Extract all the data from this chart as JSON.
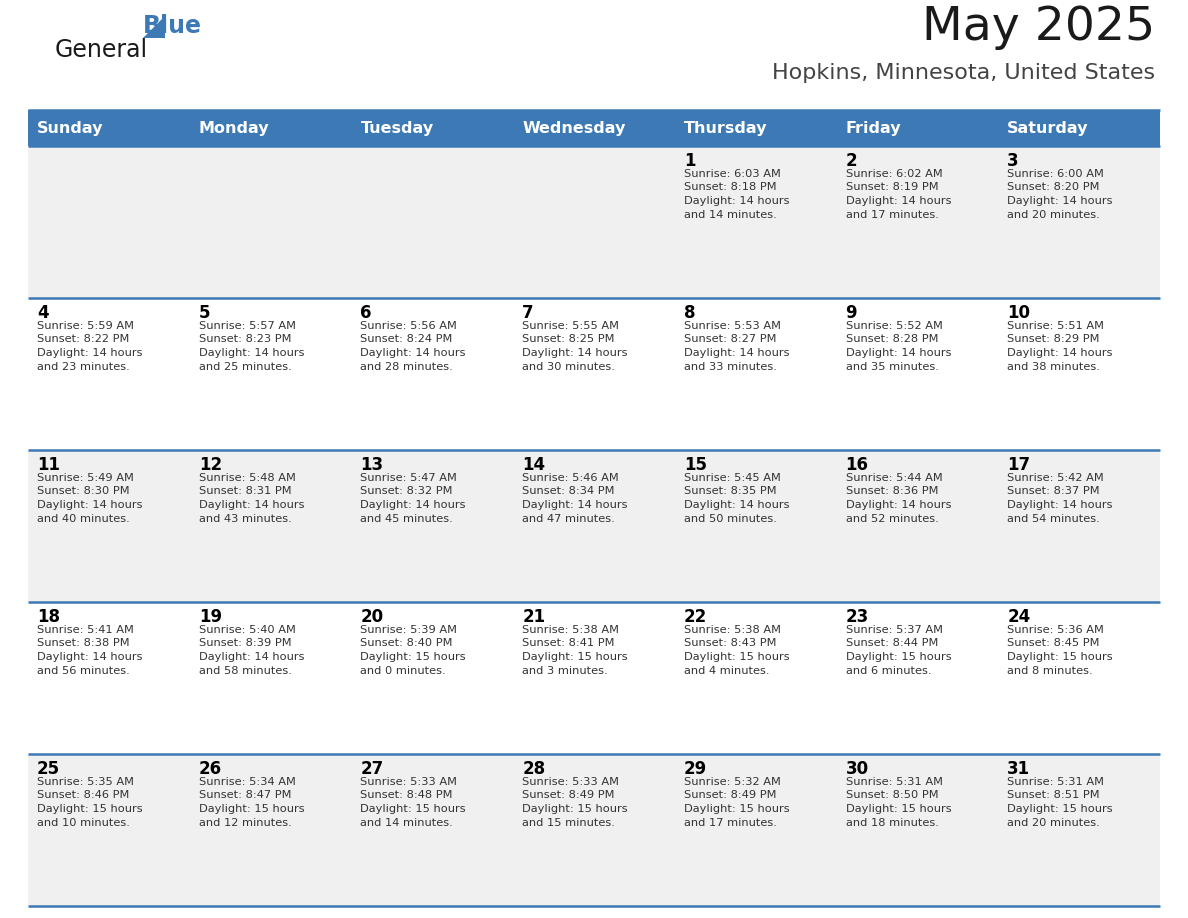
{
  "title": "May 2025",
  "subtitle": "Hopkins, Minnesota, United States",
  "days_of_week": [
    "Sunday",
    "Monday",
    "Tuesday",
    "Wednesday",
    "Thursday",
    "Friday",
    "Saturday"
  ],
  "header_bg": "#3d7ab5",
  "header_text": "#ffffff",
  "row_bg_odd": "#f0f0f0",
  "row_bg_even": "#ffffff",
  "separator_color": "#3d7ab5",
  "day_number_color": "#000000",
  "cell_text_color": "#333333",
  "title_color": "#1a1a1a",
  "subtitle_color": "#444444",
  "calendar": [
    [
      null,
      null,
      null,
      null,
      {
        "day": 1,
        "sunrise": "6:03 AM",
        "sunset": "8:18 PM",
        "daylight": "14 hours",
        "daylight2": "and 14 minutes."
      },
      {
        "day": 2,
        "sunrise": "6:02 AM",
        "sunset": "8:19 PM",
        "daylight": "14 hours",
        "daylight2": "and 17 minutes."
      },
      {
        "day": 3,
        "sunrise": "6:00 AM",
        "sunset": "8:20 PM",
        "daylight": "14 hours",
        "daylight2": "and 20 minutes."
      }
    ],
    [
      {
        "day": 4,
        "sunrise": "5:59 AM",
        "sunset": "8:22 PM",
        "daylight": "14 hours",
        "daylight2": "and 23 minutes."
      },
      {
        "day": 5,
        "sunrise": "5:57 AM",
        "sunset": "8:23 PM",
        "daylight": "14 hours",
        "daylight2": "and 25 minutes."
      },
      {
        "day": 6,
        "sunrise": "5:56 AM",
        "sunset": "8:24 PM",
        "daylight": "14 hours",
        "daylight2": "and 28 minutes."
      },
      {
        "day": 7,
        "sunrise": "5:55 AM",
        "sunset": "8:25 PM",
        "daylight": "14 hours",
        "daylight2": "and 30 minutes."
      },
      {
        "day": 8,
        "sunrise": "5:53 AM",
        "sunset": "8:27 PM",
        "daylight": "14 hours",
        "daylight2": "and 33 minutes."
      },
      {
        "day": 9,
        "sunrise": "5:52 AM",
        "sunset": "8:28 PM",
        "daylight": "14 hours",
        "daylight2": "and 35 minutes."
      },
      {
        "day": 10,
        "sunrise": "5:51 AM",
        "sunset": "8:29 PM",
        "daylight": "14 hours",
        "daylight2": "and 38 minutes."
      }
    ],
    [
      {
        "day": 11,
        "sunrise": "5:49 AM",
        "sunset": "8:30 PM",
        "daylight": "14 hours",
        "daylight2": "and 40 minutes."
      },
      {
        "day": 12,
        "sunrise": "5:48 AM",
        "sunset": "8:31 PM",
        "daylight": "14 hours",
        "daylight2": "and 43 minutes."
      },
      {
        "day": 13,
        "sunrise": "5:47 AM",
        "sunset": "8:32 PM",
        "daylight": "14 hours",
        "daylight2": "and 45 minutes."
      },
      {
        "day": 14,
        "sunrise": "5:46 AM",
        "sunset": "8:34 PM",
        "daylight": "14 hours",
        "daylight2": "and 47 minutes."
      },
      {
        "day": 15,
        "sunrise": "5:45 AM",
        "sunset": "8:35 PM",
        "daylight": "14 hours",
        "daylight2": "and 50 minutes."
      },
      {
        "day": 16,
        "sunrise": "5:44 AM",
        "sunset": "8:36 PM",
        "daylight": "14 hours",
        "daylight2": "and 52 minutes."
      },
      {
        "day": 17,
        "sunrise": "5:42 AM",
        "sunset": "8:37 PM",
        "daylight": "14 hours",
        "daylight2": "and 54 minutes."
      }
    ],
    [
      {
        "day": 18,
        "sunrise": "5:41 AM",
        "sunset": "8:38 PM",
        "daylight": "14 hours",
        "daylight2": "and 56 minutes."
      },
      {
        "day": 19,
        "sunrise": "5:40 AM",
        "sunset": "8:39 PM",
        "daylight": "14 hours",
        "daylight2": "and 58 minutes."
      },
      {
        "day": 20,
        "sunrise": "5:39 AM",
        "sunset": "8:40 PM",
        "daylight": "15 hours",
        "daylight2": "and 0 minutes."
      },
      {
        "day": 21,
        "sunrise": "5:38 AM",
        "sunset": "8:41 PM",
        "daylight": "15 hours",
        "daylight2": "and 3 minutes."
      },
      {
        "day": 22,
        "sunrise": "5:38 AM",
        "sunset": "8:43 PM",
        "daylight": "15 hours",
        "daylight2": "and 4 minutes."
      },
      {
        "day": 23,
        "sunrise": "5:37 AM",
        "sunset": "8:44 PM",
        "daylight": "15 hours",
        "daylight2": "and 6 minutes."
      },
      {
        "day": 24,
        "sunrise": "5:36 AM",
        "sunset": "8:45 PM",
        "daylight": "15 hours",
        "daylight2": "and 8 minutes."
      }
    ],
    [
      {
        "day": 25,
        "sunrise": "5:35 AM",
        "sunset": "8:46 PM",
        "daylight": "15 hours",
        "daylight2": "and 10 minutes."
      },
      {
        "day": 26,
        "sunrise": "5:34 AM",
        "sunset": "8:47 PM",
        "daylight": "15 hours",
        "daylight2": "and 12 minutes."
      },
      {
        "day": 27,
        "sunrise": "5:33 AM",
        "sunset": "8:48 PM",
        "daylight": "15 hours",
        "daylight2": "and 14 minutes."
      },
      {
        "day": 28,
        "sunrise": "5:33 AM",
        "sunset": "8:49 PM",
        "daylight": "15 hours",
        "daylight2": "and 15 minutes."
      },
      {
        "day": 29,
        "sunrise": "5:32 AM",
        "sunset": "8:49 PM",
        "daylight": "15 hours",
        "daylight2": "and 17 minutes."
      },
      {
        "day": 30,
        "sunrise": "5:31 AM",
        "sunset": "8:50 PM",
        "daylight": "15 hours",
        "daylight2": "and 18 minutes."
      },
      {
        "day": 31,
        "sunrise": "5:31 AM",
        "sunset": "8:51 PM",
        "daylight": "15 hours",
        "daylight2": "and 20 minutes."
      }
    ]
  ]
}
